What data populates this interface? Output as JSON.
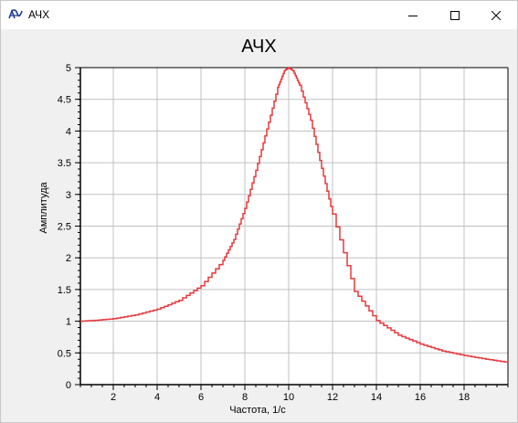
{
  "window": {
    "title": "АЧХ",
    "icon": "app-logo-icon",
    "controls": {
      "minimize": "minimize-icon",
      "maximize": "maximize-icon",
      "close": "close-icon"
    }
  },
  "chart_data": {
    "type": "line",
    "title": "АЧХ",
    "xlabel": "Частота, 1/с",
    "ylabel": "Амплитуда",
    "xlim": [
      0.5,
      20
    ],
    "ylim": [
      0,
      5
    ],
    "x_ticks": [
      2,
      4,
      6,
      8,
      10,
      12,
      14,
      16,
      18
    ],
    "y_ticks": [
      0,
      0.5,
      1,
      1.5,
      2,
      2.5,
      3,
      3.5,
      4,
      4.5,
      5
    ],
    "y_tick_labels": [
      "0",
      "0.5",
      "1",
      "1.5",
      "2",
      "2.5",
      "3",
      "3.5",
      "4",
      "4.5",
      "5"
    ],
    "grid": true,
    "line_color": "#e8383c",
    "step_style": true,
    "series": [
      {
        "name": "",
        "x": [
          0.5,
          1,
          2,
          3,
          4,
          5,
          6,
          7,
          7.5,
          8,
          8.5,
          9,
          9.5,
          9.8,
          10,
          10.2,
          10.5,
          11,
          11.5,
          12,
          13,
          14,
          15,
          16,
          17,
          18,
          19,
          20
        ],
        "y": [
          1.0,
          1.01,
          1.04,
          1.1,
          1.19,
          1.33,
          1.56,
          1.96,
          2.29,
          2.78,
          3.38,
          4.03,
          4.69,
          4.95,
          5.0,
          4.95,
          4.72,
          4.17,
          3.41,
          2.69,
          1.47,
          1.01,
          0.78,
          0.64,
          0.53,
          0.46,
          0.4,
          0.35
        ]
      }
    ]
  }
}
